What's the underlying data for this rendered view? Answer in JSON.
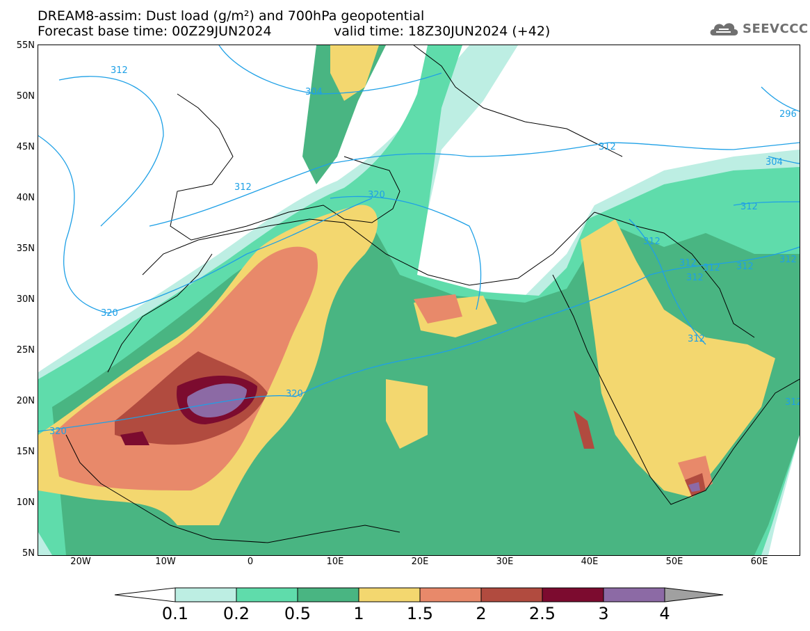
{
  "header": {
    "title_line1": "DREAM8-assim: Dust load (g/m²) and 700hPa geopotential",
    "title_line2": "Forecast base time: 00Z29JUN2024",
    "valid_time": "valid time: 18Z30JUN2024 (+42)"
  },
  "logo": {
    "text": "SEEVCCC",
    "icon": "cloud-logo-icon"
  },
  "map": {
    "lat_labels": [
      "55N",
      "50N",
      "45N",
      "40N",
      "35N",
      "30N",
      "25N",
      "20N",
      "15N",
      "10N",
      "5N"
    ],
    "lon_labels": [
      "20W",
      "10W",
      "0",
      "10E",
      "20E",
      "30E",
      "40E",
      "50E",
      "60E"
    ],
    "geopotential_labels": [
      "312",
      "304",
      "296",
      "312",
      "304",
      "312",
      "312",
      "320",
      "312",
      "312",
      "312",
      "312",
      "312",
      "312",
      "320",
      "320",
      "320",
      "312",
      "312"
    ],
    "colors": {
      "c1": "#bdeee3",
      "c2": "#5fdcab",
      "c3": "#49b582",
      "c4": "#f3d76f",
      "c5": "#e8896a",
      "c6": "#b14b3f",
      "c7": "#7c0b2f",
      "c8": "#8c6aa5",
      "contour": "#1ea0e6"
    }
  },
  "colorbar": {
    "labels": [
      "0.1",
      "0.2",
      "0.5",
      "1",
      "1.5",
      "2",
      "2.5",
      "3",
      "4"
    ],
    "colors": [
      "#bdeee3",
      "#5fdcab",
      "#49b582",
      "#f3d76f",
      "#e8896a",
      "#b14b3f",
      "#7c0b2f",
      "#8c6aa5"
    ]
  }
}
